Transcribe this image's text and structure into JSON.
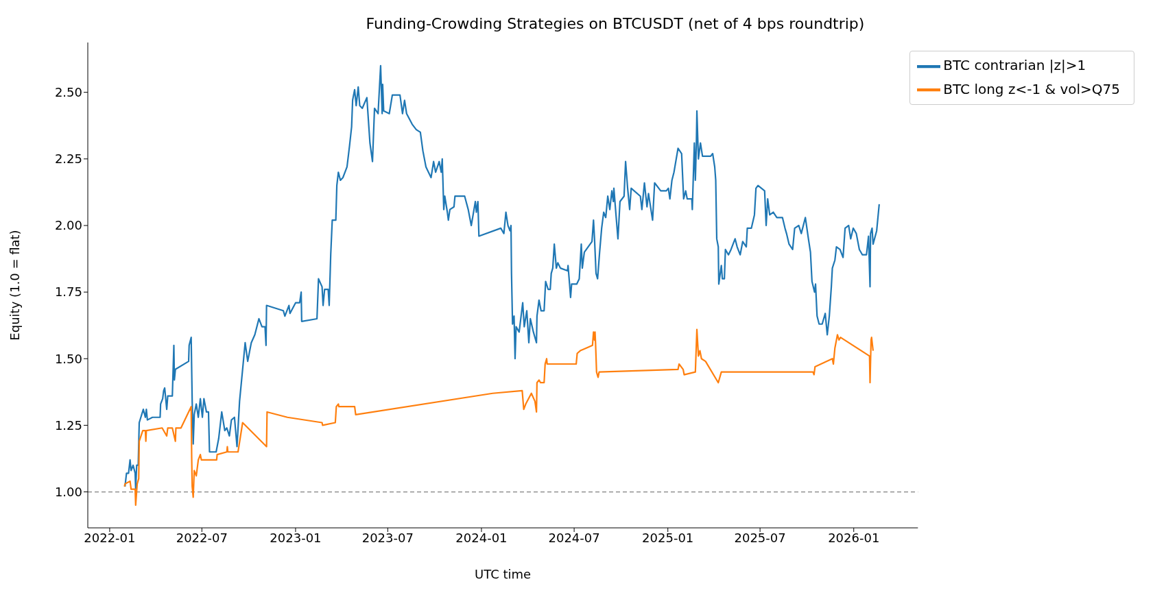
{
  "chart_data": {
    "type": "line",
    "title": "Funding-Crowding Strategies on BTCUSDT (net of 4 bps roundtrip)",
    "xlabel": "UTC time",
    "ylabel": "Equity (1.0 = flat)",
    "xlim": [
      "2021-11-19",
      "2026-05-07"
    ],
    "xticks": [
      "2022-01",
      "2022-07",
      "2023-01",
      "2023-07",
      "2024-01",
      "2024-07",
      "2025-01",
      "2025-07",
      "2026-01"
    ],
    "ylim": [
      0.865,
      2.687
    ],
    "yticks": [
      {
        "value": 1,
        "label": "1.00"
      },
      {
        "value": 1.25,
        "label": "1.25"
      },
      {
        "value": 1.5,
        "label": "1.50"
      },
      {
        "value": 1.75,
        "label": "1.75"
      },
      {
        "value": 2,
        "label": "2.00"
      },
      {
        "value": 2.25,
        "label": "2.25"
      },
      {
        "value": 2.5,
        "label": "2.50"
      }
    ],
    "grid": false,
    "legend": "top right",
    "marker": "none",
    "line_style": "solid",
    "ref_lines": [
      {
        "axis": "y",
        "value": 1,
        "color": "#808080",
        "line_style": "dashed"
      }
    ],
    "series": [
      {
        "name": "BTC contrarian |z|>1",
        "color": "#1f77b4",
        "x": [
          "2022-01-31",
          "2022-02-03",
          "2022-02-07",
          "2022-02-10",
          "2022-02-12",
          "2022-02-16",
          "2022-02-20",
          "2022-02-21",
          "2022-02-23",
          "2022-02-26",
          "2022-02-28",
          "2022-03-08",
          "2022-03-12",
          "2022-03-14",
          "2022-03-16",
          "2022-03-26",
          "2022-04-10",
          "2022-04-11",
          "2022-04-15",
          "2022-04-17",
          "2022-04-19",
          "2022-04-23",
          "2022-04-25",
          "2022-05-04",
          "2022-05-07",
          "2022-05-08",
          "2022-05-10",
          "2022-06-05",
          "2022-06-06",
          "2022-06-10",
          "2022-06-12",
          "2022-06-14",
          "2022-06-16",
          "2022-06-20",
          "2022-06-24",
          "2022-06-28",
          "2022-07-02",
          "2022-07-05",
          "2022-07-10",
          "2022-07-14",
          "2022-07-16",
          "2022-07-29",
          "2022-08-03",
          "2022-08-09",
          "2022-08-15",
          "2022-08-19",
          "2022-08-24",
          "2022-08-28",
          "2022-09-03",
          "2022-09-08",
          "2022-09-13",
          "2022-09-20",
          "2022-09-24",
          "2022-09-29",
          "2022-10-06",
          "2022-10-13",
          "2022-10-21",
          "2022-10-27",
          "2022-11-02",
          "2022-11-04",
          "2022-11-05",
          "2022-12-08",
          "2022-12-11",
          "2022-12-19",
          "2022-12-21",
          "2023-01-01",
          "2023-01-09",
          "2023-01-12",
          "2023-01-13",
          "2023-02-12",
          "2023-02-15",
          "2023-02-22",
          "2023-02-24",
          "2023-02-27",
          "2023-03-06",
          "2023-03-08",
          "2023-03-11",
          "2023-03-14",
          "2023-03-21",
          "2023-03-23",
          "2023-03-26",
          "2023-03-30",
          "2023-04-04",
          "2023-04-12",
          "2023-04-17",
          "2023-04-21",
          "2023-04-23",
          "2023-04-27",
          "2023-04-30",
          "2023-05-04",
          "2023-05-07",
          "2023-05-12",
          "2023-05-21",
          "2023-05-27",
          "2023-06-01",
          "2023-06-05",
          "2023-06-12",
          "2023-06-17",
          "2023-06-20",
          "2023-06-21",
          "2023-06-23",
          "2023-07-04",
          "2023-07-10",
          "2023-07-17",
          "2023-07-25",
          "2023-07-30",
          "2023-08-03",
          "2023-08-07",
          "2023-08-18",
          "2023-08-26",
          "2023-09-03",
          "2023-09-08",
          "2023-09-14",
          "2023-09-24",
          "2023-09-29",
          "2023-10-03",
          "2023-10-10",
          "2023-10-14",
          "2023-10-16",
          "2023-10-19",
          "2023-10-21",
          "2023-10-26",
          "2023-10-28",
          "2023-10-31",
          "2023-11-08",
          "2023-11-10",
          "2023-11-29",
          "2023-12-06",
          "2023-12-12",
          "2023-12-20",
          "2023-12-22",
          "2023-12-25",
          "2023-12-27",
          "2024-02-08",
          "2024-02-14",
          "2024-02-18",
          "2024-02-22",
          "2024-02-26",
          "2024-02-28",
          "2024-02-29",
          "2024-03-02",
          "2024-03-05",
          "2024-03-07",
          "2024-03-09",
          "2024-03-15",
          "2024-03-22",
          "2024-03-25",
          "2024-03-30",
          "2024-04-03",
          "2024-04-06",
          "2024-04-12",
          "2024-04-18",
          "2024-04-19",
          "2024-04-23",
          "2024-04-27",
          "2024-05-03",
          "2024-05-06",
          "2024-05-11",
          "2024-05-15",
          "2024-05-17",
          "2024-05-20",
          "2024-05-23",
          "2024-05-27",
          "2024-05-30",
          "2024-06-04",
          "2024-06-18",
          "2024-06-19",
          "2024-06-22",
          "2024-06-24",
          "2024-06-26",
          "2024-07-06",
          "2024-07-11",
          "2024-07-15",
          "2024-07-17",
          "2024-07-21",
          "2024-08-05",
          "2024-08-08",
          "2024-08-10",
          "2024-08-13",
          "2024-08-16",
          "2024-08-20",
          "2024-08-24",
          "2024-08-28",
          "2024-09-01",
          "2024-09-05",
          "2024-09-09",
          "2024-09-13",
          "2024-09-16",
          "2024-09-17",
          "2024-09-22",
          "2024-09-25",
          "2024-09-29",
          "2024-10-07",
          "2024-10-10",
          "2024-10-14",
          "2024-10-18",
          "2024-10-21",
          "2024-11-08",
          "2024-11-11",
          "2024-11-16",
          "2024-11-21",
          "2024-11-24",
          "2024-12-02",
          "2024-12-06",
          "2024-12-18",
          "2024-12-29",
          "2025-01-02",
          "2025-01-05",
          "2025-01-09",
          "2025-01-13",
          "2025-01-21",
          "2025-01-28",
          "2025-02-01",
          "2025-02-05",
          "2025-02-08",
          "2025-02-17",
          "2025-02-18",
          "2025-02-22",
          "2025-02-24",
          "2025-02-26",
          "2025-02-27",
          "2025-03-02",
          "2025-03-06",
          "2025-03-10",
          "2025-03-18",
          "2025-03-26",
          "2025-03-30",
          "2025-04-03",
          "2025-04-05",
          "2025-04-07",
          "2025-04-10",
          "2025-04-11",
          "2025-04-16",
          "2025-04-18",
          "2025-04-22",
          "2025-04-24",
          "2025-04-30",
          "2025-05-05",
          "2025-05-13",
          "2025-05-17",
          "2025-05-23",
          "2025-05-28",
          "2025-06-04",
          "2025-06-06",
          "2025-06-14",
          "2025-06-20",
          "2025-06-23",
          "2025-06-27",
          "2025-07-10",
          "2025-07-13",
          "2025-07-16",
          "2025-07-20",
          "2025-07-27",
          "2025-08-03",
          "2025-08-14",
          "2025-08-19",
          "2025-08-22",
          "2025-08-27",
          "2025-09-03",
          "2025-09-07",
          "2025-09-15",
          "2025-09-20",
          "2025-09-28",
          "2025-10-04",
          "2025-10-08",
          "2025-10-11",
          "2025-10-16",
          "2025-10-18",
          "2025-10-21",
          "2025-10-25",
          "2025-10-31",
          "2025-11-06",
          "2025-11-10",
          "2025-11-14",
          "2025-11-18",
          "2025-11-20",
          "2025-11-25",
          "2025-11-28",
          "2025-12-05",
          "2025-12-11",
          "2025-12-15",
          "2025-12-22",
          "2025-12-26",
          "2025-12-31",
          "2026-01-06",
          "2026-01-12",
          "2026-01-18",
          "2026-01-26",
          "2026-01-30",
          "2026-02-02",
          "2026-02-03",
          "2026-02-06",
          "2026-02-08",
          "2026-02-15",
          "2026-02-20"
        ],
        "values": [
          1.02,
          1.07,
          1.07,
          1.12,
          1.08,
          1.1,
          1.07,
          1.01,
          1.1,
          1.1,
          1.26,
          1.31,
          1.28,
          1.31,
          1.27,
          1.28,
          1.28,
          1.33,
          1.35,
          1.38,
          1.39,
          1.31,
          1.36,
          1.36,
          1.55,
          1.42,
          1.46,
          1.49,
          1.55,
          1.58,
          1.34,
          1.18,
          1.29,
          1.33,
          1.28,
          1.35,
          1.28,
          1.35,
          1.3,
          1.3,
          1.15,
          1.15,
          1.2,
          1.3,
          1.23,
          1.24,
          1.21,
          1.27,
          1.28,
          1.17,
          1.34,
          1.48,
          1.56,
          1.49,
          1.56,
          1.59,
          1.65,
          1.62,
          1.62,
          1.55,
          1.7,
          1.68,
          1.66,
          1.7,
          1.67,
          1.71,
          1.71,
          1.75,
          1.64,
          1.65,
          1.8,
          1.77,
          1.7,
          1.76,
          1.76,
          1.7,
          1.89,
          2.02,
          2.02,
          2.15,
          2.2,
          2.17,
          2.18,
          2.22,
          2.3,
          2.37,
          2.47,
          2.51,
          2.45,
          2.52,
          2.45,
          2.44,
          2.48,
          2.31,
          2.24,
          2.44,
          2.42,
          2.6,
          2.42,
          2.53,
          2.43,
          2.42,
          2.49,
          2.49,
          2.49,
          2.42,
          2.47,
          2.42,
          2.38,
          2.36,
          2.35,
          2.28,
          2.22,
          2.18,
          2.24,
          2.2,
          2.24,
          2.2,
          2.25,
          2.06,
          2.11,
          2.05,
          2.02,
          2.06,
          2.07,
          2.11,
          2.11,
          2.06,
          2.0,
          2.09,
          2.05,
          2.09,
          1.96,
          1.99,
          1.97,
          2.05,
          2.0,
          1.98,
          2.0,
          1.82,
          1.63,
          1.66,
          1.5,
          1.62,
          1.6,
          1.71,
          1.62,
          1.68,
          1.56,
          1.65,
          1.6,
          1.56,
          1.66,
          1.72,
          1.68,
          1.68,
          1.79,
          1.76,
          1.76,
          1.82,
          1.84,
          1.93,
          1.84,
          1.86,
          1.84,
          1.83,
          1.85,
          1.78,
          1.73,
          1.78,
          1.78,
          1.8,
          1.93,
          1.84,
          1.9,
          1.94,
          2.02,
          1.95,
          1.82,
          1.8,
          1.9,
          1.99,
          2.05,
          2.03,
          2.11,
          2.06,
          2.13,
          2.09,
          2.14,
          2.02,
          1.95,
          2.09,
          2.11,
          2.24,
          2.14,
          2.06,
          2.14,
          2.11,
          2.06,
          2.16,
          2.07,
          2.12,
          2.02,
          2.16,
          2.13,
          2.13,
          2.14,
          2.1,
          2.17,
          2.2,
          2.29,
          2.27,
          2.1,
          2.13,
          2.1,
          2.1,
          2.06,
          2.31,
          2.17,
          2.31,
          2.43,
          2.25,
          2.31,
          2.26,
          2.26,
          2.26,
          2.27,
          2.22,
          2.17,
          1.95,
          1.92,
          1.78,
          1.85,
          1.8,
          1.8,
          1.91,
          1.89,
          1.91,
          1.95,
          1.92,
          1.89,
          1.94,
          1.92,
          1.99,
          1.99,
          2.04,
          2.14,
          2.15,
          2.13,
          2.0,
          2.1,
          2.04,
          2.05,
          2.03,
          2.03,
          1.99,
          1.97,
          1.93,
          1.91,
          1.99,
          2.0,
          1.97,
          2.03,
          1.95,
          1.9,
          1.79,
          1.75,
          1.78,
          1.66,
          1.63,
          1.63,
          1.67,
          1.59,
          1.66,
          1.77,
          1.84,
          1.87,
          1.92,
          1.91,
          1.88,
          1.99,
          2.0,
          1.95,
          1.99,
          1.97,
          1.91,
          1.89,
          1.89,
          1.96,
          1.77,
          1.97,
          1.99,
          1.93,
          1.98,
          2.08
        ]
      },
      {
        "name": "BTC long z<-1 & vol>Q75",
        "color": "#ff7f0e",
        "x": [
          "2022-01-30",
          "2022-01-31",
          "2022-02-10",
          "2022-02-12",
          "2022-02-20",
          "2022-02-21",
          "2022-02-24",
          "2022-02-27",
          "2022-02-28",
          "2022-03-07",
          "2022-03-12",
          "2022-03-13",
          "2022-03-14",
          "2022-04-14",
          "2022-04-23",
          "2022-04-25",
          "2022-05-04",
          "2022-05-10",
          "2022-05-11",
          "2022-05-21",
          "2022-06-10",
          "2022-06-11",
          "2022-06-12",
          "2022-06-14",
          "2022-06-16",
          "2022-06-20",
          "2022-06-24",
          "2022-06-28",
          "2022-06-30",
          "2022-07-30",
          "2022-07-31",
          "2022-08-19",
          "2022-08-20",
          "2022-08-21",
          "2022-09-10",
          "2022-09-19",
          "2022-11-05",
          "2022-11-06",
          "2022-12-16",
          "2023-02-22",
          "2023-02-23",
          "2023-03-20",
          "2023-03-22",
          "2023-03-26",
          "2023-03-27",
          "2023-04-27",
          "2023-04-29",
          "2024-01-23",
          "2024-03-21",
          "2024-03-24",
          "2024-03-28",
          "2024-04-08",
          "2024-04-15",
          "2024-04-18",
          "2024-04-19",
          "2024-04-23",
          "2024-04-26",
          "2024-05-03",
          "2024-05-05",
          "2024-05-08",
          "2024-05-09",
          "2024-07-05",
          "2024-07-07",
          "2024-07-13",
          "2024-08-06",
          "2024-08-08",
          "2024-08-10",
          "2024-08-11",
          "2024-08-12",
          "2024-08-14",
          "2024-08-17",
          "2024-08-19",
          "2025-01-21",
          "2025-01-23",
          "2025-01-31",
          "2025-02-02",
          "2025-02-24",
          "2025-02-27",
          "2025-03-02",
          "2025-03-05",
          "2025-03-08",
          "2025-03-16",
          "2025-04-10",
          "2025-04-16",
          "2025-10-13",
          "2025-10-15",
          "2025-10-17",
          "2025-11-20",
          "2025-11-22",
          "2025-11-25",
          "2025-11-30",
          "2025-12-03",
          "2025-12-06",
          "2026-02-01",
          "2026-02-02",
          "2026-02-04",
          "2026-02-05",
          "2026-02-08"
        ],
        "values": [
          1.02,
          1.03,
          1.04,
          1.01,
          1.01,
          0.95,
          1.03,
          1.05,
          1.19,
          1.23,
          1.23,
          1.19,
          1.23,
          1.24,
          1.21,
          1.24,
          1.24,
          1.19,
          1.24,
          1.24,
          1.32,
          1.13,
          1.02,
          0.98,
          1.08,
          1.06,
          1.12,
          1.14,
          1.12,
          1.12,
          1.14,
          1.15,
          1.17,
          1.15,
          1.15,
          1.26,
          1.17,
          1.3,
          1.28,
          1.26,
          1.25,
          1.26,
          1.32,
          1.33,
          1.32,
          1.32,
          1.29,
          1.37,
          1.38,
          1.31,
          1.33,
          1.37,
          1.34,
          1.3,
          1.41,
          1.42,
          1.41,
          1.41,
          1.48,
          1.5,
          1.48,
          1.48,
          1.52,
          1.53,
          1.55,
          1.6,
          1.57,
          1.6,
          1.56,
          1.45,
          1.43,
          1.45,
          1.46,
          1.48,
          1.46,
          1.44,
          1.45,
          1.61,
          1.51,
          1.53,
          1.5,
          1.49,
          1.41,
          1.45,
          1.45,
          1.44,
          1.47,
          1.5,
          1.48,
          1.54,
          1.59,
          1.57,
          1.58,
          1.51,
          1.41,
          1.57,
          1.58,
          1.53
        ]
      }
    ]
  }
}
